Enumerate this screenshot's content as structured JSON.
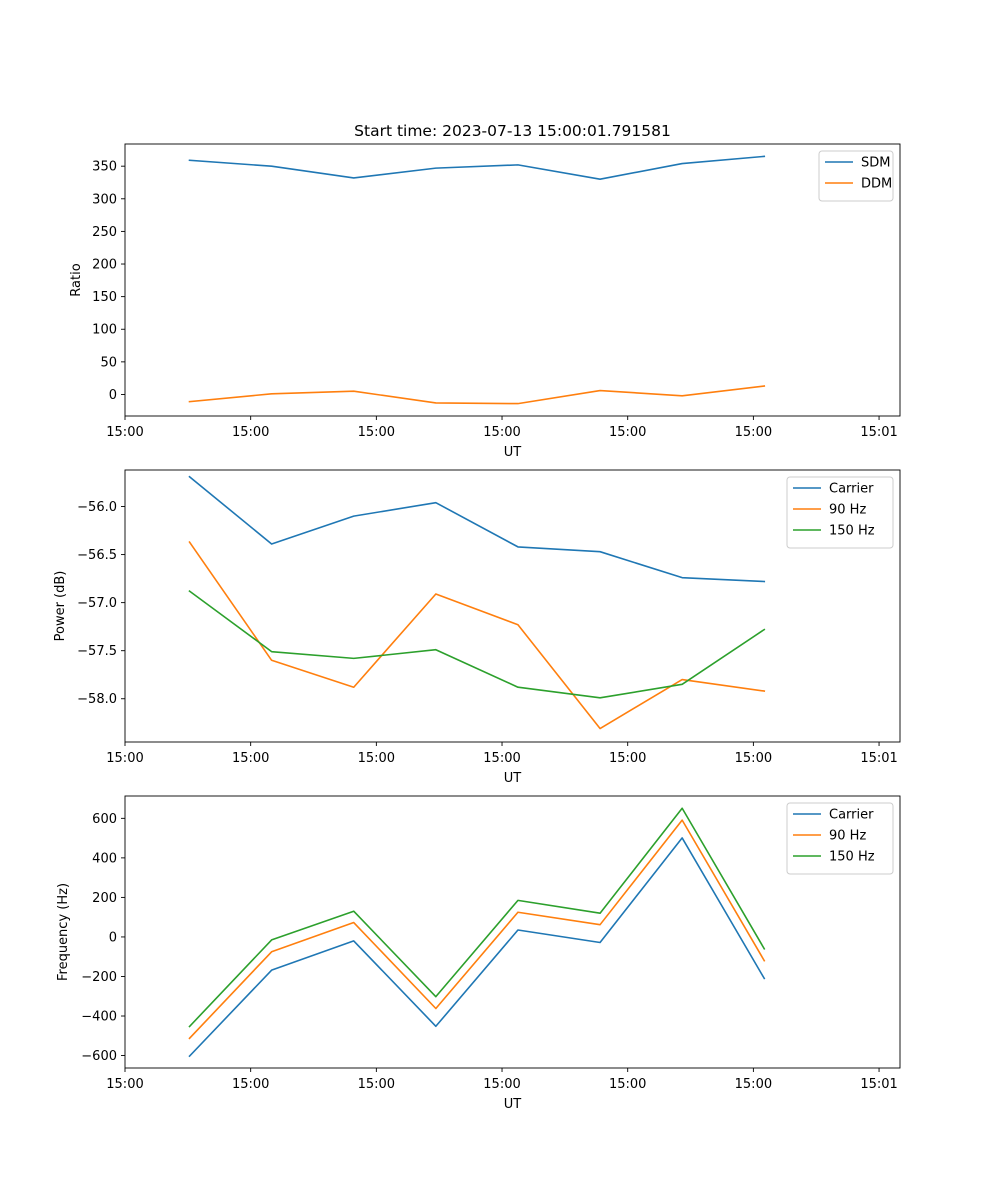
{
  "figure_title": "Start time: 2023-07-13 15:00:01.791581",
  "colors": {
    "blue": "#1f77b4",
    "orange": "#ff7f0e",
    "green": "#2ca02c",
    "axes": "#000000",
    "legend_border": "#cccccc"
  },
  "chart_data": [
    {
      "type": "line",
      "title": "Start time: 2023-07-13 15:00:01.791581",
      "xlabel": "UT",
      "ylabel": "Ratio",
      "xlim": [
        0,
        9.25
      ],
      "ylim": [
        -33,
        384
      ],
      "xticks": [
        0,
        1.5,
        3,
        4.5,
        6,
        7.5,
        9
      ],
      "xtick_labels": [
        "15:00",
        "15:00",
        "15:00",
        "15:00",
        "15:00",
        "15:00",
        "15:01"
      ],
      "yticks": [
        0,
        50,
        100,
        150,
        200,
        250,
        300,
        350
      ],
      "ytick_labels": [
        "0",
        "50",
        "100",
        "150",
        "200",
        "250",
        "300",
        "350"
      ],
      "legend_position": "top-right",
      "x": [
        0.77,
        1.75,
        2.73,
        3.71,
        4.69,
        5.67,
        6.65,
        7.63
      ],
      "series": [
        {
          "name": "SDM",
          "color": "#1f77b4",
          "values": [
            359,
            350,
            332,
            347,
            352,
            330,
            354,
            365
          ]
        },
        {
          "name": "DDM",
          "color": "#ff7f0e",
          "values": [
            -11,
            1,
            5,
            -13,
            -14,
            6,
            -2,
            13
          ]
        }
      ]
    },
    {
      "type": "line",
      "title": "",
      "xlabel": "UT",
      "ylabel": "Power (dB)",
      "xlim": [
        0,
        9.25
      ],
      "ylim": [
        -58.45,
        -55.62
      ],
      "xticks": [
        0,
        1.5,
        3,
        4.5,
        6,
        7.5,
        9
      ],
      "xtick_labels": [
        "15:00",
        "15:00",
        "15:00",
        "15:00",
        "15:00",
        "15:00",
        "15:01"
      ],
      "yticks": [
        -58.0,
        -57.5,
        -57.0,
        -56.5,
        -56.0
      ],
      "ytick_labels": [
        "−58.0",
        "−57.5",
        "−57.0",
        "−56.5",
        "−56.0"
      ],
      "legend_position": "top-right",
      "x": [
        0.77,
        1.75,
        2.73,
        3.71,
        4.69,
        5.67,
        6.65,
        7.63
      ],
      "series": [
        {
          "name": "Carrier",
          "color": "#1f77b4",
          "values": [
            -55.69,
            -56.39,
            -56.1,
            -55.96,
            -56.42,
            -56.47,
            -56.74,
            -56.78
          ]
        },
        {
          "name": "90 Hz",
          "color": "#ff7f0e",
          "values": [
            -56.37,
            -57.6,
            -57.88,
            -56.91,
            -57.23,
            -58.31,
            -57.8,
            -57.92
          ]
        },
        {
          "name": "150 Hz",
          "color": "#2ca02c",
          "values": [
            -56.88,
            -57.51,
            -57.58,
            -57.49,
            -57.88,
            -57.99,
            -57.85,
            -57.28
          ]
        }
      ]
    },
    {
      "type": "line",
      "title": "",
      "xlabel": "UT",
      "ylabel": "Frequency (Hz)",
      "xlim": [
        0,
        9.25
      ],
      "ylim": [
        -663,
        713
      ],
      "xticks": [
        0,
        1.5,
        3,
        4.5,
        6,
        7.5,
        9
      ],
      "xtick_labels": [
        "15:00",
        "15:00",
        "15:00",
        "15:00",
        "15:00",
        "15:00",
        "15:01"
      ],
      "yticks": [
        -600,
        -400,
        -200,
        0,
        200,
        400,
        600
      ],
      "ytick_labels": [
        "−600",
        "−400",
        "−200",
        "0",
        "200",
        "400",
        "600"
      ],
      "legend_position": "top-right",
      "x": [
        0.77,
        1.75,
        2.73,
        3.71,
        4.69,
        5.67,
        6.65,
        7.63
      ],
      "series": [
        {
          "name": "Carrier",
          "color": "#1f77b4",
          "values": [
            -603,
            -168,
            -20,
            -452,
            35,
            -28,
            501,
            -210
          ]
        },
        {
          "name": "90 Hz",
          "color": "#ff7f0e",
          "values": [
            -513,
            -75,
            73,
            -362,
            125,
            62,
            591,
            -120
          ]
        },
        {
          "name": "150 Hz",
          "color": "#2ca02c",
          "values": [
            -453,
            -15,
            130,
            -302,
            185,
            120,
            651,
            -60
          ]
        }
      ]
    }
  ]
}
